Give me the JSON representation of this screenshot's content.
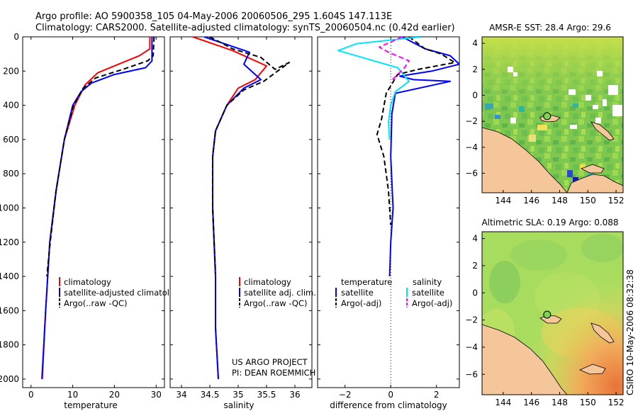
{
  "header": {
    "line1": "Argo profile: AO 5900358_105 04-May-2006 20060506_295 1.604S 147.113E",
    "line2": "Climatology: CARS2000. Satellite-adjusted climatology: synTS_20060504.nc (0.42d earlier)"
  },
  "colors": {
    "red": "#ff0000",
    "blue": "#0000ff",
    "black": "#000000",
    "cyan": "#00e5ff",
    "magenta": "#ff00ff",
    "land": "#f5c69a"
  },
  "chart_data": [
    {
      "id": "temperature",
      "type": "line",
      "xlabel": "temperature",
      "ylabel": "",
      "xlim": [
        -2,
        32
      ],
      "ylim": [
        0,
        2050
      ],
      "yreversed": true,
      "xticks": [
        0,
        10,
        20,
        30
      ],
      "yticks": [
        0,
        200,
        400,
        600,
        800,
        1000,
        1200,
        1400,
        1600,
        1800,
        2000
      ],
      "legend": [
        "climatology",
        "satellite-adjusted climatology",
        "Argo(..raw -QC)"
      ],
      "series": [
        {
          "name": "climatology",
          "color": "red",
          "style": "solid",
          "x": [
            28.5,
            28.5,
            26,
            21,
            16,
            13,
            10.5,
            8,
            6,
            4.5,
            3.5,
            2.7
          ],
          "y": [
            0,
            70,
            110,
            160,
            210,
            280,
            400,
            600,
            900,
            1200,
            1600,
            2000
          ]
        },
        {
          "name": "satellite-adjusted climatology",
          "color": "blue",
          "style": "solid",
          "x": [
            29,
            29,
            27.5,
            20,
            14.5,
            12,
            10,
            8,
            6,
            4.5,
            3.5,
            2.6
          ],
          "y": [
            0,
            140,
            180,
            220,
            270,
            320,
            400,
            600,
            900,
            1200,
            1600,
            2000
          ]
        },
        {
          "name": "Argo(..raw -QC)",
          "color": "black",
          "style": "dashed",
          "x": [
            29.5,
            29.3,
            28,
            22,
            15.5,
            12.5,
            10.2,
            8,
            6,
            4.6,
            3.8
          ],
          "y": [
            0,
            110,
            140,
            190,
            240,
            300,
            400,
            600,
            900,
            1200,
            1400
          ]
        }
      ]
    },
    {
      "id": "salinity",
      "type": "line",
      "xlabel": "salinity",
      "ylabel": "",
      "xlim": [
        33.8,
        36.3
      ],
      "ylim": [
        0,
        2050
      ],
      "yreversed": true,
      "xticks": [
        34,
        34.5,
        35,
        35.5,
        36
      ],
      "yticks": [],
      "legend": [
        "climatology",
        "satellite adj. clim.",
        "Argo(..raw -QC)"
      ],
      "footer": [
        "US ARGO PROJECT",
        "PI: DEAN ROEMMICH"
      ],
      "series": [
        {
          "name": "climatology",
          "color": "red",
          "style": "solid",
          "x": [
            34.2,
            34.9,
            35.5,
            35.3,
            35,
            34.8,
            34.6,
            34.55,
            34.55,
            34.6,
            34.6,
            34.65
          ],
          "y": [
            0,
            80,
            170,
            250,
            300,
            400,
            550,
            700,
            1000,
            1400,
            1700,
            2000
          ]
        },
        {
          "name": "satellite adj. clim.",
          "color": "blue",
          "style": "solid",
          "x": [
            34.4,
            35.2,
            35.1,
            35.4,
            35.1,
            34.8,
            34.6,
            34.55,
            34.55,
            34.6,
            34.6,
            34.65
          ],
          "y": [
            0,
            90,
            160,
            250,
            300,
            400,
            550,
            700,
            1000,
            1400,
            1700,
            2000
          ]
        },
        {
          "name": "Argo(..raw -QC)",
          "color": "black",
          "style": "dashed",
          "x": [
            34.5,
            34.9,
            35.4,
            35.65,
            35.9,
            35.45,
            35.1,
            34.8,
            34.6,
            34.55,
            34.55,
            34.6
          ],
          "y": [
            0,
            70,
            120,
            190,
            150,
            260,
            310,
            400,
            550,
            700,
            1000,
            1380
          ]
        }
      ]
    },
    {
      "id": "difference",
      "type": "line",
      "xlabel": "difference from climatology",
      "ylabel": "",
      "xlim": [
        -3.2,
        3
      ],
      "ylim": [
        0,
        2050
      ],
      "yreversed": true,
      "xticks": [
        -2,
        0,
        2
      ],
      "yticks": [],
      "legend_titles": [
        "temperature",
        "salinity"
      ],
      "legend": [
        "satellite",
        "Argo(-adj)",
        "satellite",
        "Argo(-adj)"
      ],
      "series": [
        {
          "name": "temperature satellite",
          "color": "blue",
          "style": "solid",
          "x": [
            0.5,
            1.5,
            2.6,
            3.0,
            1.8,
            0.4,
            1.0,
            2.6,
            0.2,
            0.05,
            0.0,
            0.1,
            0.0,
            -0.05
          ],
          "y": [
            0,
            70,
            110,
            160,
            200,
            230,
            250,
            260,
            330,
            450,
            700,
            1000,
            1200,
            1400
          ]
        },
        {
          "name": "temperature Argo(-adj)",
          "color": "black",
          "style": "dashed",
          "x": [
            0.8,
            1.5,
            2.2,
            2.8,
            1.2,
            0.3,
            -0.2,
            -0.4,
            -0.6,
            -0.3,
            -0.1,
            0.0
          ],
          "y": [
            0,
            70,
            100,
            150,
            190,
            220,
            330,
            480,
            570,
            700,
            900,
            1100
          ]
        },
        {
          "name": "salinity satellite",
          "color": "cyan",
          "style": "solid",
          "x": [
            1.3,
            -1.5,
            -2.3,
            -1.0,
            0.3,
            0.8,
            0.2,
            0.0,
            -0.1,
            -0.05
          ],
          "y": [
            0,
            40,
            80,
            130,
            180,
            260,
            320,
            400,
            500,
            600
          ]
        },
        {
          "name": "salinity Argo(-adj)",
          "color": "magenta",
          "style": "dashed",
          "x": [
            0.5,
            -0.5,
            -0.1,
            0.8,
            0.6,
            0.3,
            0.0
          ],
          "y": [
            0,
            60,
            90,
            140,
            180,
            220,
            260
          ]
        }
      ]
    },
    {
      "id": "sst-map",
      "type": "heatmap",
      "title": "AMSR-E SST: 28.4 Argo: 29.6",
      "xticks": [
        144,
        146,
        148,
        150,
        152
      ],
      "yticks": [
        4,
        2,
        0,
        -2,
        -4,
        -6
      ],
      "xlim": [
        142.5,
        152.5
      ],
      "ylim": [
        -7.5,
        4.5
      ],
      "argo_position": {
        "lon": 147.113,
        "lat": -1.604
      }
    },
    {
      "id": "sla-map",
      "type": "heatmap",
      "title": "Altimetric SLA: 0.19 Argo: 0.088",
      "xticks": [
        144,
        146,
        148,
        150,
        152
      ],
      "yticks": [
        4,
        2,
        0,
        -2,
        -4,
        -6
      ],
      "xlim": [
        142.5,
        152.5
      ],
      "ylim": [
        -7.5,
        4.5
      ],
      "argo_position": {
        "lon": 147.113,
        "lat": -1.604
      }
    }
  ],
  "stamp": "CSIRO 10-May-2006 08:32:38"
}
